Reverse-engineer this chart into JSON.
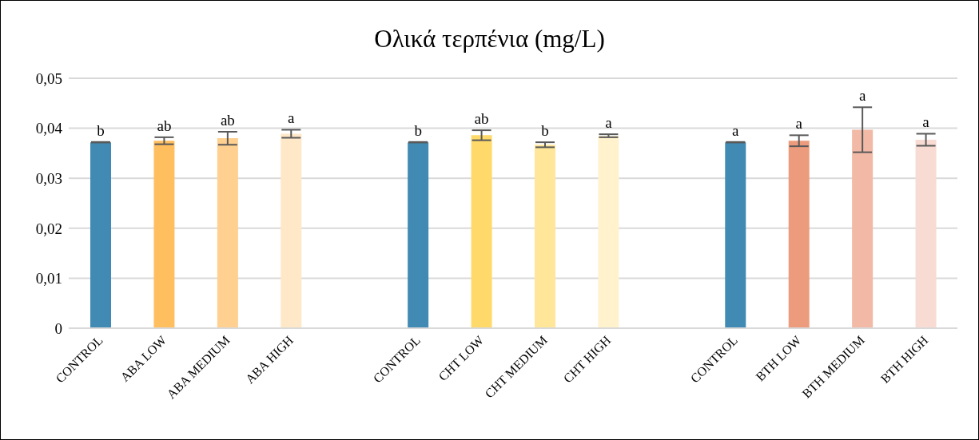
{
  "chart_data": {
    "type": "bar",
    "title": "Ολικά τερπένια (mg/L)",
    "categories": [
      "CONTROL",
      "ABA LOW",
      "ABA MEDIUM",
      "ABA HIGH",
      null,
      "CONTROL",
      "CHT LOW",
      "CHT MEDIUM",
      "CHT HIGH",
      null,
      "CONTROL",
      "BTH LOW",
      "BTH MEDIUM",
      "BTH HIGH"
    ],
    "values": [
      0.0372,
      0.0375,
      0.038,
      0.0389,
      null,
      0.0372,
      0.0386,
      0.0367,
      0.0385,
      null,
      0.0372,
      0.0375,
      0.0397,
      0.0377
    ],
    "errors": [
      5e-05,
      0.0007,
      0.0013,
      0.0008,
      null,
      5e-05,
      0.001,
      0.0005,
      0.0003,
      null,
      5e-05,
      0.0011,
      0.0045,
      0.0012
    ],
    "colors": [
      "#418ab3",
      "#ffbf5f",
      "#ffd08f",
      "#ffe8c7",
      "#ffffff",
      "#418ab3",
      "#ffda6a",
      "#ffe699",
      "#fff2cc",
      "#ffffff",
      "#418ab3",
      "#ec9b7d",
      "#f2b9a6",
      "#f8dcd3"
    ],
    "value_labels": [
      "b",
      "ab",
      "ab",
      "a",
      null,
      "b",
      "ab",
      "b",
      "a",
      null,
      "a",
      "a",
      "a",
      "a"
    ],
    "ylim": [
      0,
      0.05
    ],
    "yticks": [
      0,
      {
        "value": 0.01,
        "label": "0,01"
      },
      {
        "value": 0.02,
        "label": "0,02"
      },
      {
        "value": 0.03,
        "label": "0,03"
      },
      {
        "value": 0.04,
        "label": "0,04"
      },
      {
        "value": 0.05,
        "label": "0,05"
      }
    ],
    "grid": "y",
    "legend": false
  }
}
